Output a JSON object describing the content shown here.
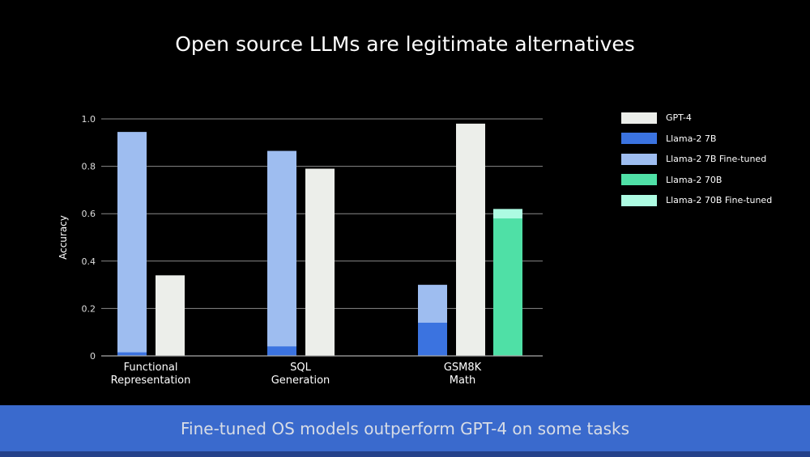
{
  "title": "Open source LLMs are legitimate alternatives",
  "banner": "Fine-tuned OS models outperform GPT-4 on some tasks",
  "chart_data": {
    "type": "bar",
    "title": "Open source LLMs are legitimate alternatives",
    "xlabel": "",
    "ylabel": "Accuracy",
    "ylim": [
      0,
      1.0
    ],
    "yticks": [
      "0",
      "0.2",
      "0.4",
      "0.6",
      "0.8",
      "1.0"
    ],
    "grid": true,
    "legend_position": "right",
    "categories": [
      [
        "Functional",
        "Representation"
      ],
      [
        "SQL",
        "Generation"
      ],
      [
        "GSM8K",
        "Math"
      ]
    ],
    "series": [
      {
        "name": "GPT-4",
        "color": "#eceeea",
        "values": [
          0.34,
          0.79,
          0.98
        ]
      },
      {
        "name": "Llama-2 7B",
        "color": "#3b73e0",
        "values": [
          0.015,
          0.04,
          0.14
        ]
      },
      {
        "name": "Llama-2 7B Fine-tuned",
        "color": "#9ebdf0",
        "values": [
          0.945,
          0.865,
          0.3
        ]
      },
      {
        "name": "Llama-2 70B",
        "color": "#4fe0a6",
        "values": [
          null,
          null,
          0.58
        ]
      },
      {
        "name": "Llama-2 70B Fine-tuned",
        "color": "#adfbe2",
        "values": [
          null,
          null,
          0.62
        ]
      }
    ]
  }
}
